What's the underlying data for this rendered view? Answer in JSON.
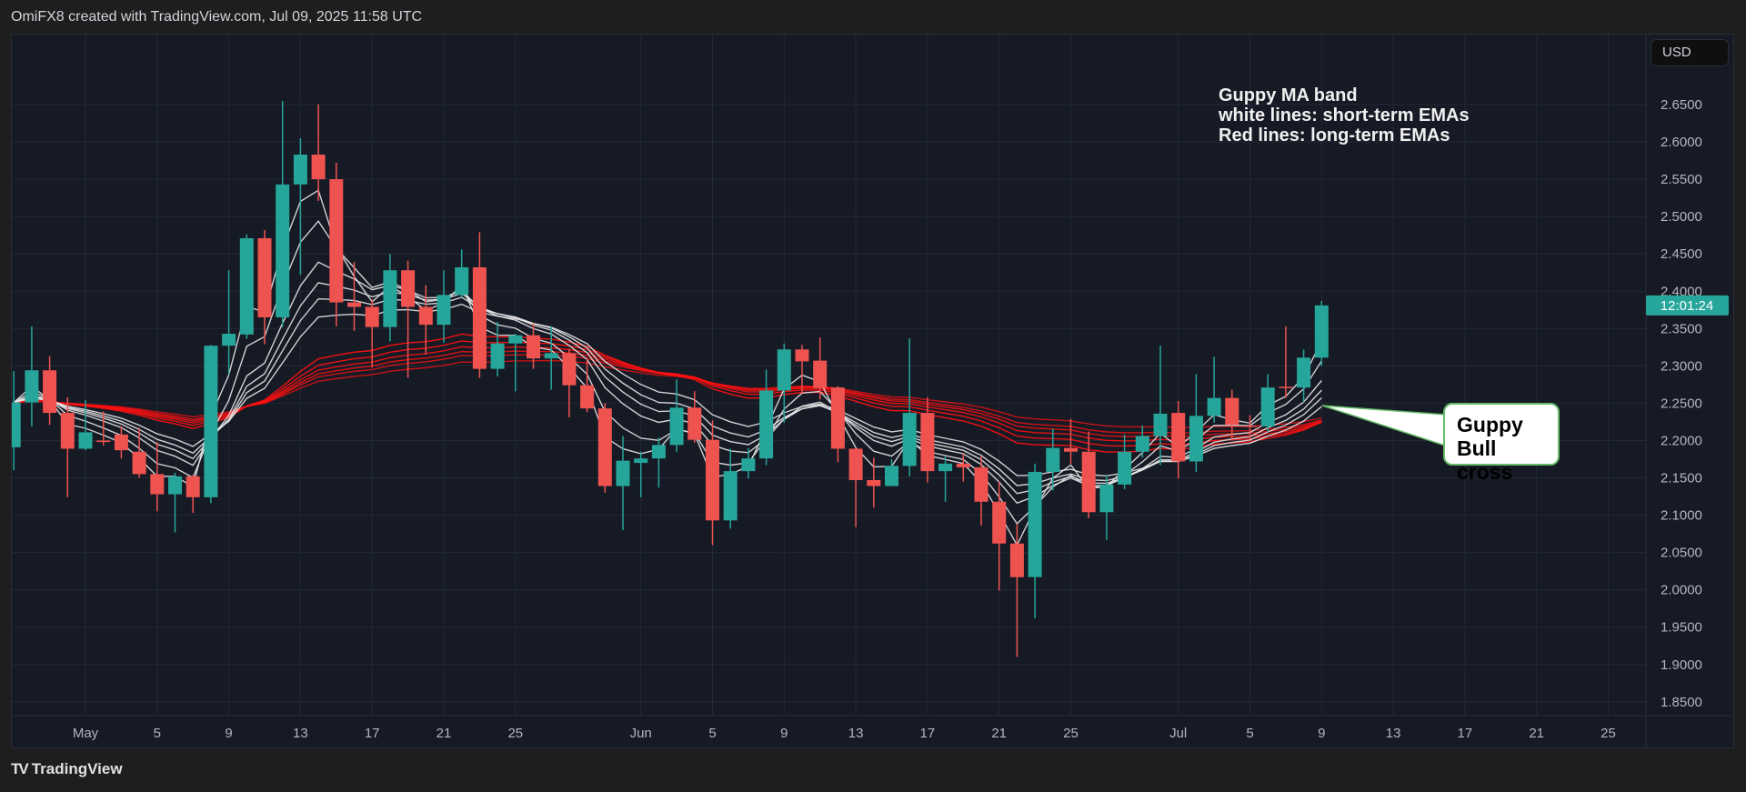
{
  "header": {
    "text": "OmiFX8 created with TradingView.com, Jul 09, 2025 11:58 UTC"
  },
  "footer": {
    "logo_text": "TradingView"
  },
  "price_axis": {
    "currency": "USD",
    "countdown": "12:01:24"
  },
  "annotation": {
    "lines": [
      "Guppy MA band",
      "white lines: short-term EMAs",
      "Red lines: long-term EMAs"
    ]
  },
  "callout": {
    "lines": [
      "Guppy",
      "Bull cross"
    ]
  },
  "colors": {
    "up": "#26a69a",
    "down": "#ef5350",
    "short_ema": "#e6e6e6",
    "long_ema": "#ff1010",
    "grid": "#232837",
    "callout_border": "#66bb6a"
  },
  "chart_data": {
    "type": "candlestick",
    "ylim": [
      1.82,
      2.69
    ],
    "grid": true,
    "y_ticks": [
      "2.6500",
      "2.6000",
      "2.5500",
      "2.5000",
      "2.4500",
      "2.4000",
      "2.3500",
      "2.3000",
      "2.2500",
      "2.2000",
      "2.1500",
      "2.1000",
      "2.0500",
      "2.0000",
      "1.9500",
      "1.9000",
      "1.8500"
    ],
    "x_ticks": [
      {
        "label": "May",
        "date": "2025-05-01"
      },
      {
        "label": "5",
        "date": "2025-05-05"
      },
      {
        "label": "9",
        "date": "2025-05-09"
      },
      {
        "label": "13",
        "date": "2025-05-13"
      },
      {
        "label": "17",
        "date": "2025-05-17"
      },
      {
        "label": "21",
        "date": "2025-05-21"
      },
      {
        "label": "25",
        "date": "2025-05-25"
      },
      {
        "label": "Jun",
        "date": "2025-06-01"
      },
      {
        "label": "5",
        "date": "2025-06-05"
      },
      {
        "label": "9",
        "date": "2025-06-09"
      },
      {
        "label": "13",
        "date": "2025-06-13"
      },
      {
        "label": "17",
        "date": "2025-06-17"
      },
      {
        "label": "21",
        "date": "2025-06-21"
      },
      {
        "label": "25",
        "date": "2025-06-25"
      },
      {
        "label": "Jul",
        "date": "2025-07-01"
      },
      {
        "label": "5",
        "date": "2025-07-05"
      },
      {
        "label": "9",
        "date": "2025-07-09"
      },
      {
        "label": "13",
        "date": "2025-07-13"
      },
      {
        "label": "17",
        "date": "2025-07-17"
      },
      {
        "label": "21",
        "date": "2025-07-21"
      },
      {
        "label": "25",
        "date": "2025-07-25"
      }
    ],
    "columns": [
      "date",
      "open",
      "high",
      "low",
      "close"
    ],
    "candles": [
      [
        "2025-04-27",
        2.191,
        2.293,
        2.16,
        2.251
      ],
      [
        "2025-04-28",
        2.251,
        2.353,
        2.219,
        2.294
      ],
      [
        "2025-04-29",
        2.294,
        2.313,
        2.221,
        2.237
      ],
      [
        "2025-04-30",
        2.237,
        2.258,
        2.124,
        2.189
      ],
      [
        "2025-05-01",
        2.189,
        2.254,
        2.187,
        2.211
      ],
      [
        "2025-05-02",
        2.2,
        2.239,
        2.193,
        2.198
      ],
      [
        "2025-05-03",
        2.208,
        2.219,
        2.176,
        2.187
      ],
      [
        "2025-05-04",
        2.185,
        2.217,
        2.15,
        2.155
      ],
      [
        "2025-05-05",
        2.155,
        2.198,
        2.105,
        2.128
      ],
      [
        "2025-05-06",
        2.128,
        2.157,
        2.077,
        2.152
      ],
      [
        "2025-05-07",
        2.152,
        2.154,
        2.103,
        2.124
      ],
      [
        "2025-05-08",
        2.124,
        2.328,
        2.116,
        2.327
      ],
      [
        "2025-05-09",
        2.327,
        2.428,
        2.288,
        2.343
      ],
      [
        "2025-05-10",
        2.342,
        2.476,
        2.336,
        2.471
      ],
      [
        "2025-05-11",
        2.471,
        2.482,
        2.329,
        2.365
      ],
      [
        "2025-05-12",
        2.365,
        2.655,
        2.352,
        2.543
      ],
      [
        "2025-05-13",
        2.543,
        2.605,
        2.422,
        2.583
      ],
      [
        "2025-05-14",
        2.583,
        2.65,
        2.521,
        2.55
      ],
      [
        "2025-05-15",
        2.55,
        2.572,
        2.353,
        2.385
      ],
      [
        "2025-05-16",
        2.385,
        2.439,
        2.347,
        2.379
      ],
      [
        "2025-05-17",
        2.379,
        2.389,
        2.298,
        2.352
      ],
      [
        "2025-05-18",
        2.352,
        2.45,
        2.333,
        2.428
      ],
      [
        "2025-05-19",
        2.428,
        2.441,
        2.284,
        2.379
      ],
      [
        "2025-05-20",
        2.379,
        2.408,
        2.315,
        2.355
      ],
      [
        "2025-05-21",
        2.355,
        2.428,
        2.331,
        2.395
      ],
      [
        "2025-05-22",
        2.395,
        2.456,
        2.392,
        2.432
      ],
      [
        "2025-05-23",
        2.432,
        2.479,
        2.284,
        2.296
      ],
      [
        "2025-05-24",
        2.296,
        2.359,
        2.286,
        2.33
      ],
      [
        "2025-05-25",
        2.33,
        2.343,
        2.266,
        2.341
      ],
      [
        "2025-05-26",
        2.341,
        2.357,
        2.296,
        2.31
      ],
      [
        "2025-05-27",
        2.31,
        2.353,
        2.268,
        2.317
      ],
      [
        "2025-05-28",
        2.317,
        2.323,
        2.231,
        2.274
      ],
      [
        "2025-05-29",
        2.274,
        2.309,
        2.238,
        2.243
      ],
      [
        "2025-05-30",
        2.243,
        2.25,
        2.13,
        2.139
      ],
      [
        "2025-05-31",
        2.139,
        2.206,
        2.08,
        2.173
      ],
      [
        "2025-06-01",
        2.17,
        2.185,
        2.124,
        2.176
      ],
      [
        "2025-06-02",
        2.176,
        2.204,
        2.137,
        2.194
      ],
      [
        "2025-06-03",
        2.194,
        2.282,
        2.185,
        2.244
      ],
      [
        "2025-06-04",
        2.244,
        2.266,
        2.197,
        2.201
      ],
      [
        "2025-06-05",
        2.201,
        2.227,
        2.06,
        2.093
      ],
      [
        "2025-06-06",
        2.093,
        2.189,
        2.082,
        2.159
      ],
      [
        "2025-06-07",
        2.159,
        2.19,
        2.149,
        2.176
      ],
      [
        "2025-06-08",
        2.176,
        2.295,
        2.167,
        2.267
      ],
      [
        "2025-06-09",
        2.267,
        2.33,
        2.224,
        2.322
      ],
      [
        "2025-06-10",
        2.322,
        2.328,
        2.263,
        2.306
      ],
      [
        "2025-06-11",
        2.307,
        2.338,
        2.255,
        2.27
      ],
      [
        "2025-06-12",
        2.271,
        2.273,
        2.171,
        2.189
      ],
      [
        "2025-06-13",
        2.189,
        2.19,
        2.084,
        2.147
      ],
      [
        "2025-06-14",
        2.147,
        2.177,
        2.11,
        2.139
      ],
      [
        "2025-06-15",
        2.139,
        2.175,
        2.139,
        2.166
      ],
      [
        "2025-06-16",
        2.166,
        2.337,
        2.152,
        2.237
      ],
      [
        "2025-06-17",
        2.237,
        2.258,
        2.144,
        2.159
      ],
      [
        "2025-06-18",
        2.159,
        2.179,
        2.118,
        2.169
      ],
      [
        "2025-06-19",
        2.169,
        2.182,
        2.145,
        2.164
      ],
      [
        "2025-06-20",
        2.164,
        2.179,
        2.086,
        2.118
      ],
      [
        "2025-06-21",
        2.118,
        2.145,
        1.999,
        2.062
      ],
      [
        "2025-06-22",
        2.062,
        2.088,
        1.91,
        2.017
      ],
      [
        "2025-06-23",
        2.017,
        2.169,
        1.962,
        2.158
      ],
      [
        "2025-06-24",
        2.158,
        2.216,
        2.133,
        2.19
      ],
      [
        "2025-06-25",
        2.19,
        2.229,
        2.169,
        2.185
      ],
      [
        "2025-06-26",
        2.185,
        2.212,
        2.096,
        2.104
      ],
      [
        "2025-06-27",
        2.104,
        2.154,
        2.067,
        2.141
      ],
      [
        "2025-06-28",
        2.141,
        2.208,
        2.135,
        2.185
      ],
      [
        "2025-06-29",
        2.185,
        2.22,
        2.177,
        2.206
      ],
      [
        "2025-06-30",
        2.206,
        2.327,
        2.167,
        2.236
      ],
      [
        "2025-07-01",
        2.237,
        2.253,
        2.149,
        2.172
      ],
      [
        "2025-07-02",
        2.172,
        2.289,
        2.158,
        2.233
      ],
      [
        "2025-07-03",
        2.233,
        2.312,
        2.224,
        2.257
      ],
      [
        "2025-07-04",
        2.257,
        2.268,
        2.2,
        2.221
      ],
      [
        "2025-07-05",
        2.22,
        2.234,
        2.202,
        2.219
      ],
      [
        "2025-07-06",
        2.219,
        2.289,
        2.211,
        2.271
      ],
      [
        "2025-07-07",
        2.272,
        2.353,
        2.257,
        2.271
      ],
      [
        "2025-07-08",
        2.271,
        2.322,
        2.251,
        2.311
      ],
      [
        "2025-07-09",
        2.311,
        2.387,
        2.3,
        2.381
      ]
    ]
  }
}
